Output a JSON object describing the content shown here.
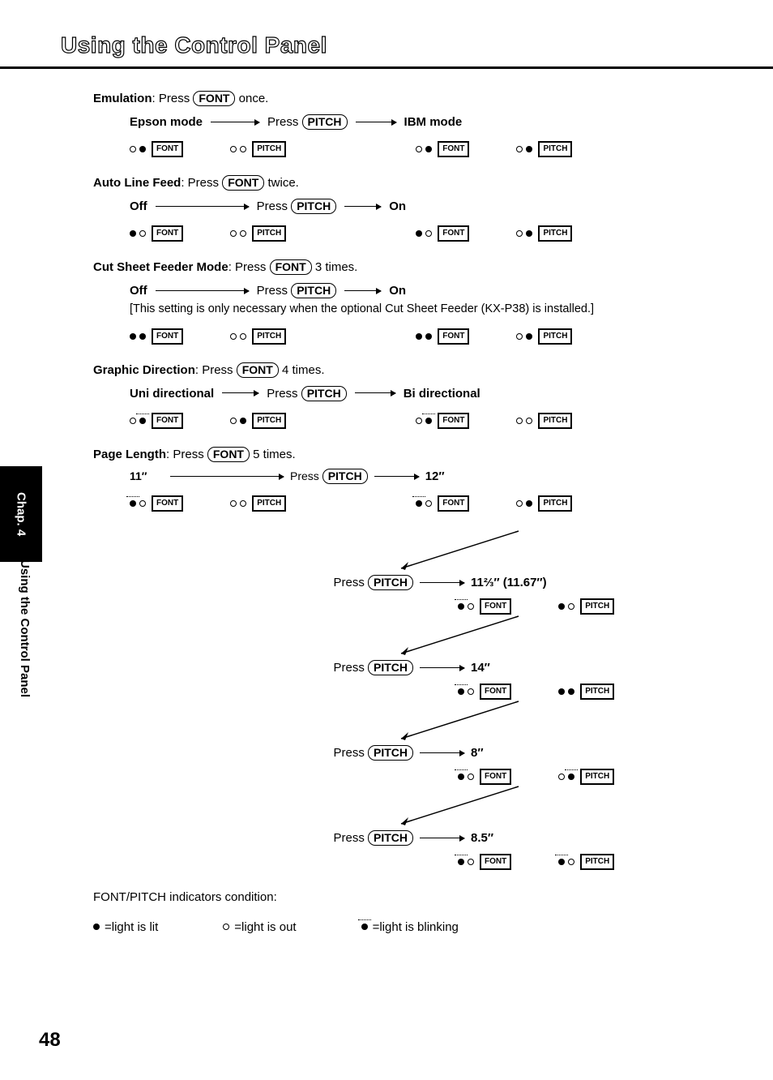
{
  "page": {
    "title": "Using the Control Panel",
    "chapter_tab": "Chap. 4",
    "side_caption": "Using the Control Panel",
    "page_number": "48"
  },
  "keycaps": {
    "font": "FONT",
    "pitch": "PITCH"
  },
  "button_labels": {
    "font": "FONT",
    "pitch": "PITCH"
  },
  "sections": {
    "emulation": {
      "heading_label": "Emulation",
      "heading_rest": ": Press ",
      "heading_tail": " once.",
      "left_label": "Epson mode",
      "mid_text": "Press ",
      "right_label": "IBM mode",
      "left_leds": [
        "out",
        "lit",
        "out",
        "out"
      ],
      "right_leds": [
        "out",
        "lit",
        "out",
        "lit"
      ]
    },
    "autolf": {
      "heading_label": "Auto Line Feed",
      "heading_rest": ": Press ",
      "heading_tail": " twice.",
      "left_label": "Off",
      "mid_text": "Press ",
      "right_label": "On",
      "left_leds": [
        "lit",
        "out",
        "out",
        "out"
      ],
      "right_leds": [
        "lit",
        "out",
        "out",
        "lit"
      ]
    },
    "csf": {
      "heading_label": "Cut Sheet Feeder Mode",
      "heading_rest": ": Press ",
      "heading_tail": " 3 times.",
      "left_label": "Off",
      "mid_text": "Press ",
      "right_label": "On",
      "note": "[This setting is only necessary when the optional Cut Sheet Feeder (KX-P38) is installed.]",
      "left_leds": [
        "lit",
        "lit",
        "out",
        "out"
      ],
      "right_leds": [
        "lit",
        "lit",
        "out",
        "lit"
      ]
    },
    "graphic": {
      "heading_label": "Graphic Direction",
      "heading_rest": ": Press ",
      "heading_tail": " 4 times.",
      "left_label": "Uni directional",
      "mid_text": "Press ",
      "right_label": "Bi directional",
      "left_leds": [
        "out",
        "blink",
        "out",
        "lit"
      ],
      "right_leds": [
        "out",
        "blink",
        "out",
        "out"
      ]
    },
    "pagelen": {
      "heading_label": "Page Length",
      "heading_rest": ": Press ",
      "heading_tail": " 5 times.",
      "start_label": "11″",
      "mid_text": "Press ",
      "start_leds": [
        "blink",
        "out",
        "out",
        "out"
      ],
      "steps": [
        {
          "label": "12″",
          "leds": [
            "blink",
            "out",
            "out",
            "lit"
          ]
        },
        {
          "label": "11⅔″ (11.67″)",
          "leds": [
            "blink",
            "out",
            "lit",
            "out"
          ]
        },
        {
          "label": "14″",
          "leds": [
            "blink",
            "out",
            "lit",
            "lit"
          ]
        },
        {
          "label": "8″",
          "leds": [
            "blink",
            "out",
            "out",
            "blink"
          ]
        },
        {
          "label": "8.5″",
          "leds": [
            "blink",
            "out",
            "blink",
            "out"
          ]
        }
      ]
    }
  },
  "legend": {
    "heading": "FONT/PITCH indicators condition:",
    "lit": "=light is lit",
    "out": "=light is out",
    "blink": "=light is blinking"
  }
}
